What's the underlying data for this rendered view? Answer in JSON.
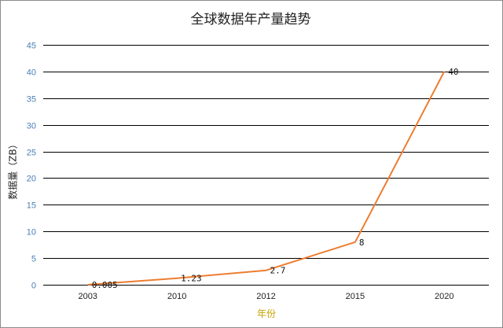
{
  "chart_data": {
    "type": "line",
    "title": "全球数据年产量趋势",
    "xlabel": "年份",
    "ylabel": "数据量（ZB）",
    "categories": [
      "2003",
      "2010",
      "2012",
      "2015",
      "2020"
    ],
    "series": [
      {
        "values": [
          0.005,
          1.23,
          2.7,
          8,
          40
        ],
        "labels": [
          "0.005",
          "1.23",
          "2.7",
          "8",
          "40"
        ]
      }
    ],
    "ylim": [
      0,
      45
    ],
    "yticks": [
      "0",
      "5",
      "10",
      "15",
      "20",
      "25",
      "30",
      "35",
      "40",
      "45"
    ],
    "grid": true,
    "legend": "none",
    "colors": {
      "line": "#ed7d31",
      "grid": "#000000",
      "ytick": "#4a7fb5",
      "xlabel": "#c8a400"
    }
  }
}
